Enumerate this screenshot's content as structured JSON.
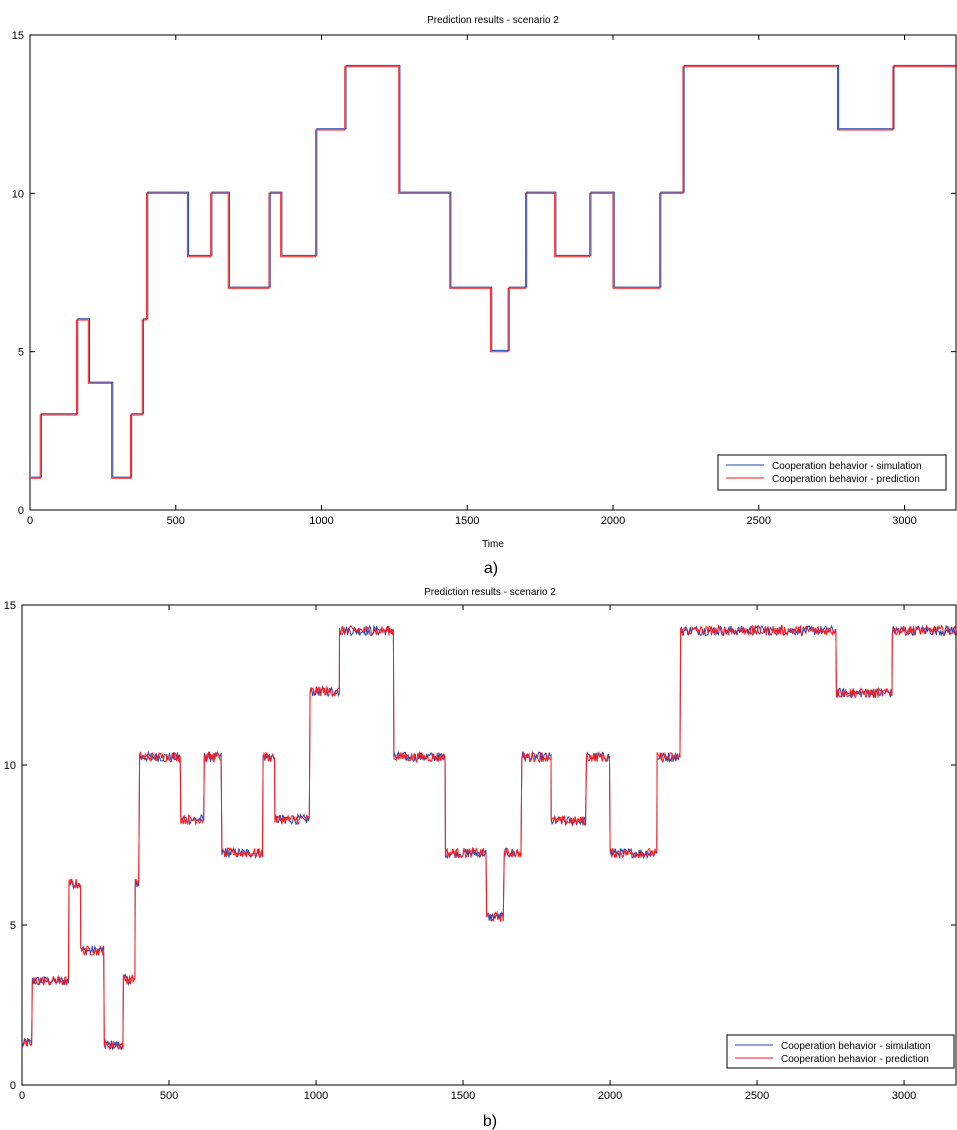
{
  "captions": [
    "a)",
    "b)"
  ],
  "chart_data": [
    {
      "type": "line",
      "title": "Prediction results - scenario 2",
      "xlabel": "Time",
      "ylabel": "",
      "xlim": [
        0,
        3180
      ],
      "ylim": [
        0,
        15
      ],
      "xticks": [
        0,
        500,
        1000,
        1500,
        2000,
        2500,
        3000
      ],
      "yticks": [
        0,
        5,
        10,
        15
      ],
      "legend_position": "bottom-right",
      "grid": false,
      "noise": 0,
      "series": [
        {
          "name": "Cooperation behavior - simulation",
          "color": "#2046b4",
          "steps": [
            [
              0,
              1
            ],
            [
              35,
              3
            ],
            [
              160,
              6
            ],
            [
              200,
              4
            ],
            [
              280,
              1
            ],
            [
              345,
              3
            ],
            [
              385,
              6
            ],
            [
              400,
              10
            ],
            [
              540,
              8
            ],
            [
              620,
              10
            ],
            [
              680,
              7
            ],
            [
              820,
              10
            ],
            [
              860,
              8
            ],
            [
              980,
              12
            ],
            [
              1080,
              14
            ],
            [
              1265,
              10
            ],
            [
              1440,
              7
            ],
            [
              1580,
              5
            ],
            [
              1640,
              7
            ],
            [
              1700,
              10
            ],
            [
              1800,
              8
            ],
            [
              1920,
              10
            ],
            [
              2000,
              7
            ],
            [
              2160,
              10
            ],
            [
              2240,
              14
            ],
            [
              2770,
              12
            ],
            [
              2960,
              14
            ],
            [
              3180,
              14
            ]
          ]
        },
        {
          "name": "Cooperation behavior - prediction",
          "color": "#ff1a1a",
          "steps": [
            [
              0,
              1
            ],
            [
              35,
              3
            ],
            [
              160,
              6
            ],
            [
              200,
              4
            ],
            [
              280,
              1
            ],
            [
              345,
              3
            ],
            [
              385,
              6
            ],
            [
              400,
              10
            ],
            [
              540,
              8
            ],
            [
              620,
              10
            ],
            [
              680,
              7
            ],
            [
              820,
              10
            ],
            [
              860,
              8
            ],
            [
              980,
              12
            ],
            [
              1080,
              14
            ],
            [
              1265,
              10
            ],
            [
              1440,
              7
            ],
            [
              1580,
              5
            ],
            [
              1640,
              7
            ],
            [
              1700,
              10
            ],
            [
              1800,
              8
            ],
            [
              1920,
              10
            ],
            [
              2000,
              7
            ],
            [
              2160,
              10
            ],
            [
              2240,
              14
            ],
            [
              2770,
              12
            ],
            [
              2960,
              14
            ],
            [
              3180,
              14
            ]
          ]
        }
      ]
    },
    {
      "type": "line",
      "title": "Prediction results - scenario  2",
      "xlabel": "",
      "ylabel": "",
      "xlim": [
        0,
        3180
      ],
      "ylim": [
        0,
        15
      ],
      "xticks": [
        0,
        500,
        1000,
        1500,
        2000,
        2500,
        3000
      ],
      "yticks": [
        0,
        5,
        10,
        15
      ],
      "legend_position": "bottom-right",
      "grid": false,
      "noise": 0.28,
      "series": [
        {
          "name": "Cooperation behavior - simulation",
          "color": "#2046b4",
          "steps": [
            [
              0,
              1.3
            ],
            [
              35,
              3.25
            ],
            [
              160,
              6.3
            ],
            [
              200,
              4.2
            ],
            [
              280,
              1.25
            ],
            [
              345,
              3.3
            ],
            [
              385,
              6.3
            ],
            [
              400,
              10.25
            ],
            [
              540,
              8.3
            ],
            [
              620,
              10.25
            ],
            [
              680,
              7.25
            ],
            [
              820,
              10.25
            ],
            [
              860,
              8.3
            ],
            [
              980,
              12.3
            ],
            [
              1080,
              14.2
            ],
            [
              1265,
              10.25
            ],
            [
              1440,
              7.25
            ],
            [
              1580,
              5.25
            ],
            [
              1640,
              7.25
            ],
            [
              1700,
              10.25
            ],
            [
              1800,
              8.25
            ],
            [
              1920,
              10.25
            ],
            [
              2000,
              7.25
            ],
            [
              2160,
              10.25
            ],
            [
              2240,
              14.2
            ],
            [
              2770,
              12.25
            ],
            [
              2960,
              14.2
            ],
            [
              3180,
              14.2
            ]
          ]
        },
        {
          "name": "Cooperation behavior - prediction",
          "color": "#ff1a1a",
          "steps": [
            [
              0,
              1.3
            ],
            [
              35,
              3.25
            ],
            [
              160,
              6.3
            ],
            [
              200,
              4.2
            ],
            [
              280,
              1.25
            ],
            [
              345,
              3.3
            ],
            [
              385,
              6.3
            ],
            [
              400,
              10.25
            ],
            [
              540,
              8.3
            ],
            [
              620,
              10.25
            ],
            [
              680,
              7.25
            ],
            [
              820,
              10.25
            ],
            [
              860,
              8.3
            ],
            [
              980,
              12.3
            ],
            [
              1080,
              14.2
            ],
            [
              1265,
              10.25
            ],
            [
              1440,
              7.25
            ],
            [
              1580,
              5.25
            ],
            [
              1640,
              7.25
            ],
            [
              1700,
              10.25
            ],
            [
              1800,
              8.25
            ],
            [
              1920,
              10.25
            ],
            [
              2000,
              7.25
            ],
            [
              2160,
              10.25
            ],
            [
              2240,
              14.2
            ],
            [
              2770,
              12.25
            ],
            [
              2960,
              14.2
            ],
            [
              3180,
              14.2
            ]
          ]
        }
      ]
    }
  ]
}
